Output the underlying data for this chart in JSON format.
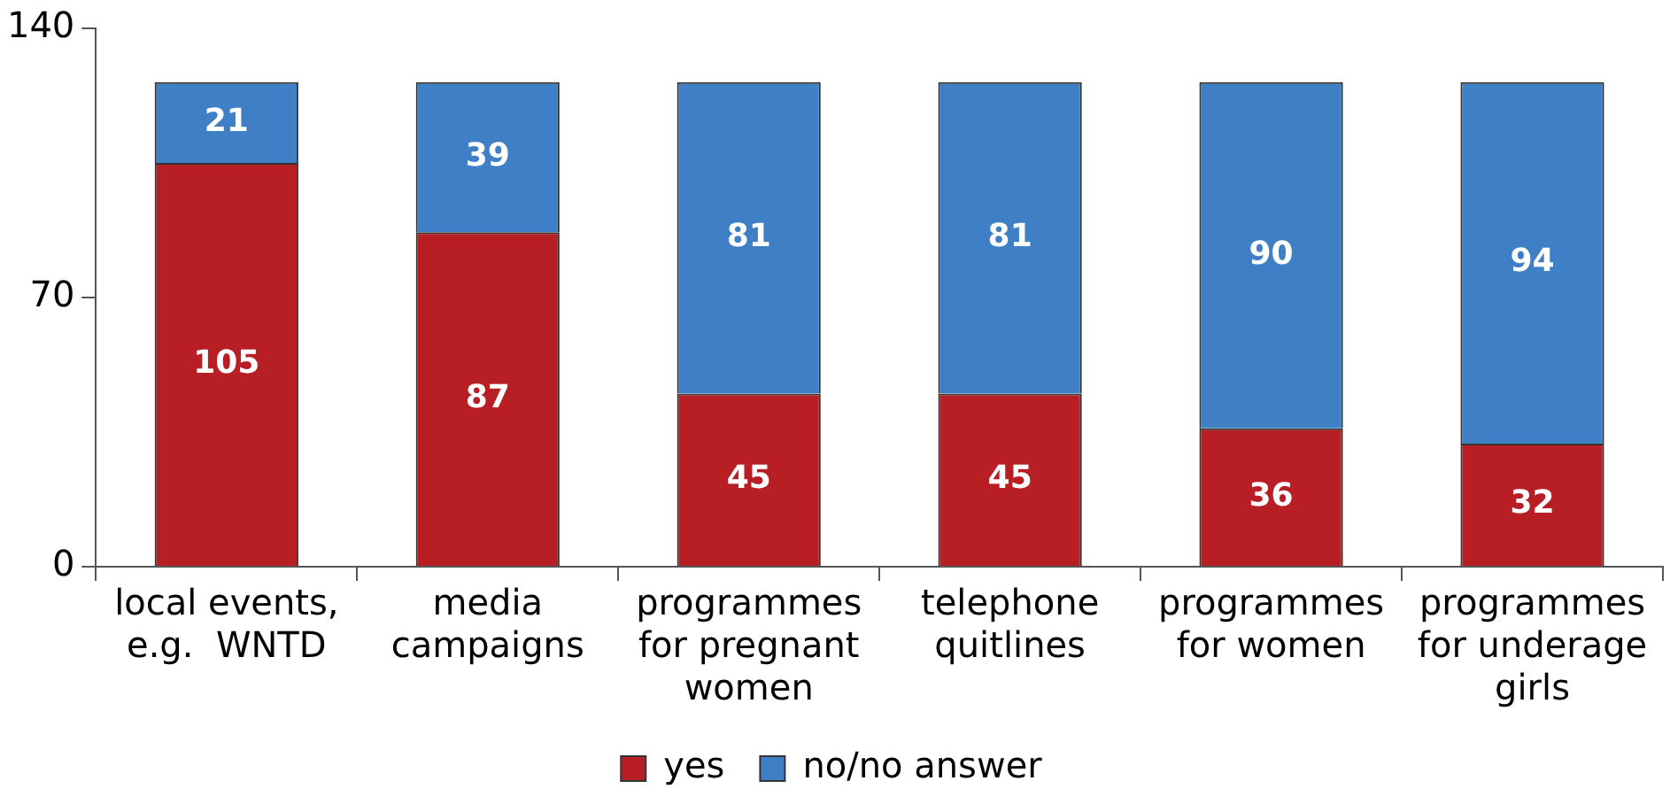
{
  "chart_data": {
    "type": "bar",
    "stacked": true,
    "categories": [
      "local events,\ne.g.  WNTD",
      "media\ncampaigns",
      "programmes\nfor pregnant\nwomen",
      "telephone\nquitlines",
      "programmes\nfor women",
      "programmes\nfor underage\ngirls"
    ],
    "series": [
      {
        "name": "yes",
        "color": "#b81f25",
        "values": [
          105,
          87,
          45,
          45,
          36,
          32
        ]
      },
      {
        "name": "no/no answer",
        "color": "#3f7fc6",
        "values": [
          21,
          39,
          81,
          81,
          90,
          94
        ]
      }
    ],
    "ylim": [
      0,
      140
    ],
    "yticks": [
      0,
      70,
      140
    ],
    "grid": false,
    "legend": "bottom",
    "data_labels": true
  }
}
